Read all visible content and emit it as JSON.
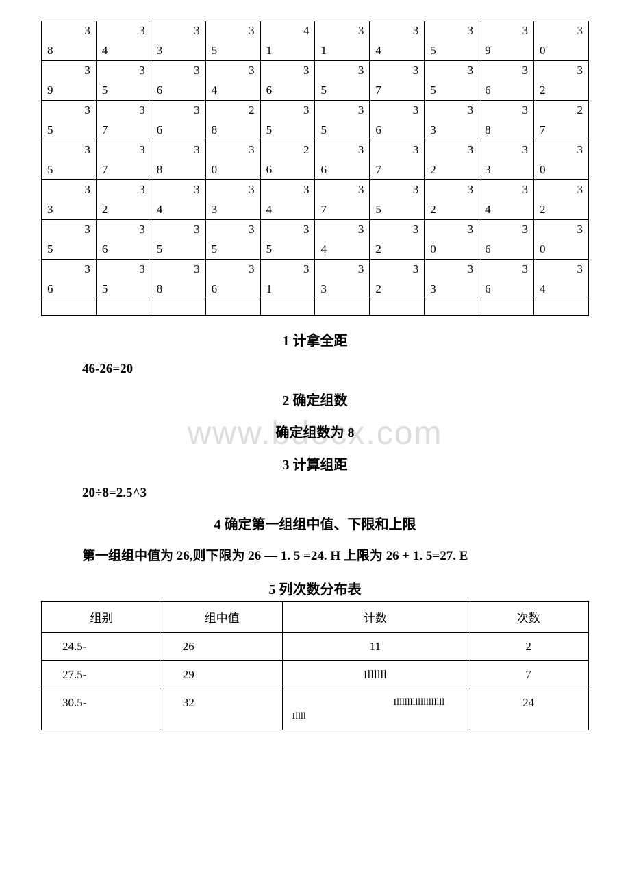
{
  "dataTable": {
    "rows": [
      [
        {
          "t": "3",
          "b": "8"
        },
        {
          "t": "3",
          "b": "4"
        },
        {
          "t": "3",
          "b": "3"
        },
        {
          "t": "3",
          "b": "5"
        },
        {
          "t": "4",
          "b": "1"
        },
        {
          "t": "3",
          "b": "1"
        },
        {
          "t": "3",
          "b": "4"
        },
        {
          "t": "3",
          "b": "5"
        },
        {
          "t": "3",
          "b": "9"
        },
        {
          "t": "3",
          "b": "0"
        }
      ],
      [
        {
          "t": "3",
          "b": "9"
        },
        {
          "t": "3",
          "b": "5"
        },
        {
          "t": "3",
          "b": "6"
        },
        {
          "t": "3",
          "b": "4"
        },
        {
          "t": "3",
          "b": "6"
        },
        {
          "t": "3",
          "b": "5"
        },
        {
          "t": "3",
          "b": "7"
        },
        {
          "t": "3",
          "b": "5"
        },
        {
          "t": "3",
          "b": "6"
        },
        {
          "t": "3",
          "b": "2"
        }
      ],
      [
        {
          "t": "3",
          "b": "5"
        },
        {
          "t": "3",
          "b": "7"
        },
        {
          "t": "3",
          "b": "6"
        },
        {
          "t": "2",
          "b": "8"
        },
        {
          "t": "3",
          "b": "5"
        },
        {
          "t": "3",
          "b": "5"
        },
        {
          "t": "3",
          "b": "6"
        },
        {
          "t": "3",
          "b": "3"
        },
        {
          "t": "3",
          "b": "8"
        },
        {
          "t": "2",
          "b": "7"
        }
      ],
      [
        {
          "t": "3",
          "b": "5"
        },
        {
          "t": "3",
          "b": "7"
        },
        {
          "t": "3",
          "b": "8"
        },
        {
          "t": "3",
          "b": "0"
        },
        {
          "t": "2",
          "b": "6"
        },
        {
          "t": "3",
          "b": "6"
        },
        {
          "t": "3",
          "b": "7"
        },
        {
          "t": "3",
          "b": "2"
        },
        {
          "t": "3",
          "b": "3"
        },
        {
          "t": "3",
          "b": "0"
        }
      ],
      [
        {
          "t": "3",
          "b": "3"
        },
        {
          "t": "3",
          "b": "2"
        },
        {
          "t": "3",
          "b": "4"
        },
        {
          "t": "3",
          "b": "3"
        },
        {
          "t": "3",
          "b": "4"
        },
        {
          "t": "3",
          "b": "7"
        },
        {
          "t": "3",
          "b": "5"
        },
        {
          "t": "3",
          "b": "2"
        },
        {
          "t": "3",
          "b": "4"
        },
        {
          "t": "3",
          "b": "2"
        }
      ],
      [
        {
          "t": "3",
          "b": "5"
        },
        {
          "t": "3",
          "b": "6"
        },
        {
          "t": "3",
          "b": "5"
        },
        {
          "t": "3",
          "b": "5"
        },
        {
          "t": "3",
          "b": "5"
        },
        {
          "t": "3",
          "b": "4"
        },
        {
          "t": "3",
          "b": "2"
        },
        {
          "t": "3",
          "b": "0"
        },
        {
          "t": "3",
          "b": "6"
        },
        {
          "t": "3",
          "b": "0"
        }
      ],
      [
        {
          "t": "3",
          "b": "6"
        },
        {
          "t": "3",
          "b": "5"
        },
        {
          "t": "3",
          "b": "8"
        },
        {
          "t": "3",
          "b": "6"
        },
        {
          "t": "3",
          "b": "1"
        },
        {
          "t": "3",
          "b": "3"
        },
        {
          "t": "3",
          "b": "2"
        },
        {
          "t": "3",
          "b": "3"
        },
        {
          "t": "3",
          "b": "6"
        },
        {
          "t": "3",
          "b": "4"
        }
      ]
    ],
    "hasEmptyRow": true
  },
  "sections": {
    "h1": "1 计拿全距",
    "calc1": "46-26=20",
    "h2": "2 确定组数",
    "sub2": "确定组数为 8",
    "h3": "3 计算组距",
    "calc3": "20÷8=2.5^3",
    "h4": "4 确定第一组组中值、下限和上限",
    "para4": "第一组组中值为 26,则下限为 26 — 1. 5 =24. H 上限为 26 + 1. 5=27. E",
    "h5": "5 列次数分布表"
  },
  "freqTable": {
    "headers": [
      "组别",
      "组中值",
      "计数",
      "次数"
    ],
    "rows": [
      {
        "group": "24.5-",
        "mid": "26",
        "tally": "11",
        "count": "2"
      },
      {
        "group": "27.5-",
        "mid": "29",
        "tally": "Illllll",
        "count": "7"
      },
      {
        "group": "30.5-",
        "mid": "32",
        "tally": "Illllllllllllllllll Illll",
        "count": "24",
        "multi": true
      }
    ]
  },
  "watermark": "www.bdocx.com"
}
